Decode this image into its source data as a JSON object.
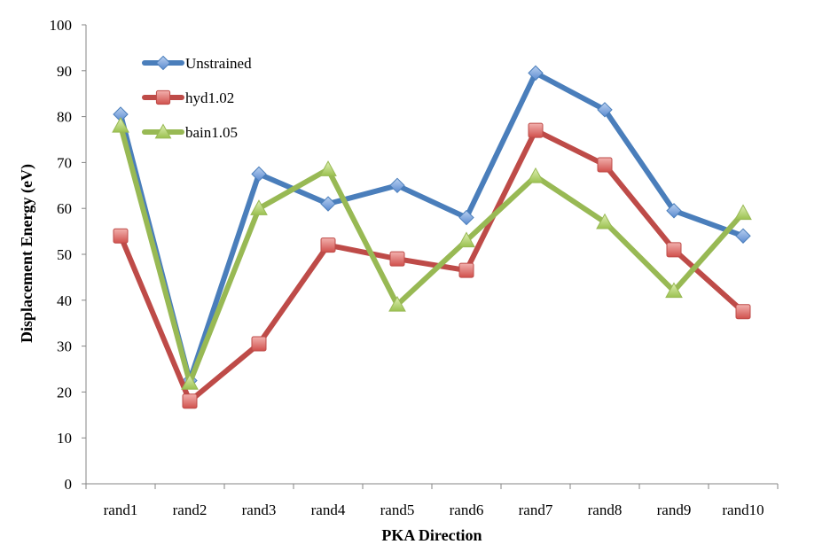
{
  "chart_data": {
    "type": "line",
    "title": "",
    "xlabel": "PKA Direction",
    "ylabel": "Displacement Energy (eV)",
    "categories": [
      "rand1",
      "rand2",
      "rand3",
      "rand4",
      "rand5",
      "rand6",
      "rand7",
      "rand8",
      "rand9",
      "rand10"
    ],
    "ylim": [
      0,
      100
    ],
    "yticks": [
      0,
      10,
      20,
      30,
      40,
      50,
      60,
      70,
      80,
      90,
      100
    ],
    "grid": false,
    "legend_position": "top-left",
    "series": [
      {
        "name": "Unstrained",
        "color": "#4a7ebb",
        "marker": "diamond",
        "values": [
          80.5,
          22.5,
          67.5,
          61,
          65,
          58,
          89.5,
          81.5,
          59.5,
          54
        ]
      },
      {
        "name": "hyd1.02",
        "color": "#be4b48",
        "marker": "square",
        "values": [
          54,
          18,
          30.5,
          52,
          49,
          46.5,
          77,
          69.5,
          51,
          37.5
        ]
      },
      {
        "name": "bain1.05",
        "color": "#98b954",
        "marker": "triangle",
        "values": [
          78,
          22,
          60,
          68.5,
          39,
          53,
          67,
          57,
          42,
          59
        ]
      }
    ]
  }
}
